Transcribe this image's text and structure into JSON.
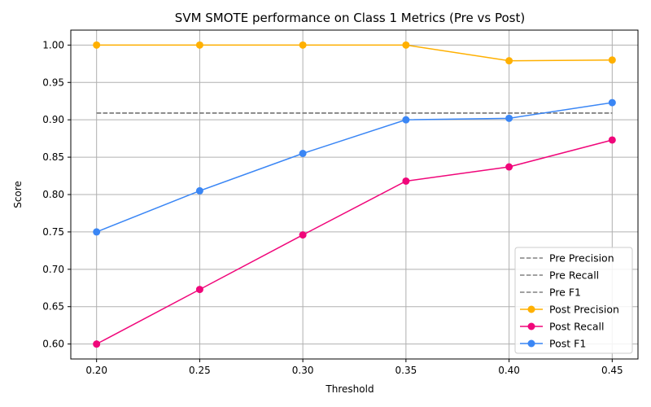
{
  "chart_data": {
    "type": "line",
    "title": "SVM SMOTE performance on Class 1 Metrics (Pre vs Post)",
    "xlabel": "Threshold",
    "ylabel": "Score",
    "x": [
      0.2,
      0.25,
      0.3,
      0.35,
      0.4,
      0.45
    ],
    "x_tick_labels": [
      "0.20",
      "0.25",
      "0.30",
      "0.35",
      "0.40",
      "0.45"
    ],
    "y_ticks": [
      0.6,
      0.65,
      0.7,
      0.75,
      0.8,
      0.85,
      0.9,
      0.95,
      1.0
    ],
    "y_tick_labels": [
      "0.60",
      "0.65",
      "0.70",
      "0.75",
      "0.80",
      "0.85",
      "0.90",
      "0.95",
      "1.00"
    ],
    "xlim": [
      0.1875,
      0.4625
    ],
    "ylim": [
      0.58,
      1.02
    ],
    "grid": true,
    "legend_position": "bottom-right",
    "series": [
      {
        "name": "Pre Precision",
        "color": "#808080",
        "style": "dashed",
        "marker": "none",
        "values": [
          0.909,
          0.909,
          0.909,
          0.909,
          0.909,
          0.909
        ]
      },
      {
        "name": "Pre Recall",
        "color": "#808080",
        "style": "dashed",
        "marker": "none",
        "values": [
          0.909,
          0.909,
          0.909,
          0.909,
          0.909,
          0.909
        ]
      },
      {
        "name": "Pre F1",
        "color": "#808080",
        "style": "dashed",
        "marker": "none",
        "values": [
          0.909,
          0.909,
          0.909,
          0.909,
          0.909,
          0.909
        ]
      },
      {
        "name": "Post Precision",
        "color": "#FFB000",
        "style": "solid",
        "marker": "circle",
        "values": [
          1.0,
          1.0,
          1.0,
          1.0,
          0.979,
          0.98
        ]
      },
      {
        "name": "Post Recall",
        "color": "#F0067A",
        "style": "solid",
        "marker": "circle",
        "values": [
          0.6,
          0.673,
          0.746,
          0.818,
          0.837,
          0.873
        ]
      },
      {
        "name": "Post F1",
        "color": "#3A86F5",
        "style": "solid",
        "marker": "circle",
        "values": [
          0.75,
          0.805,
          0.855,
          0.9,
          0.902,
          0.923
        ]
      }
    ]
  }
}
